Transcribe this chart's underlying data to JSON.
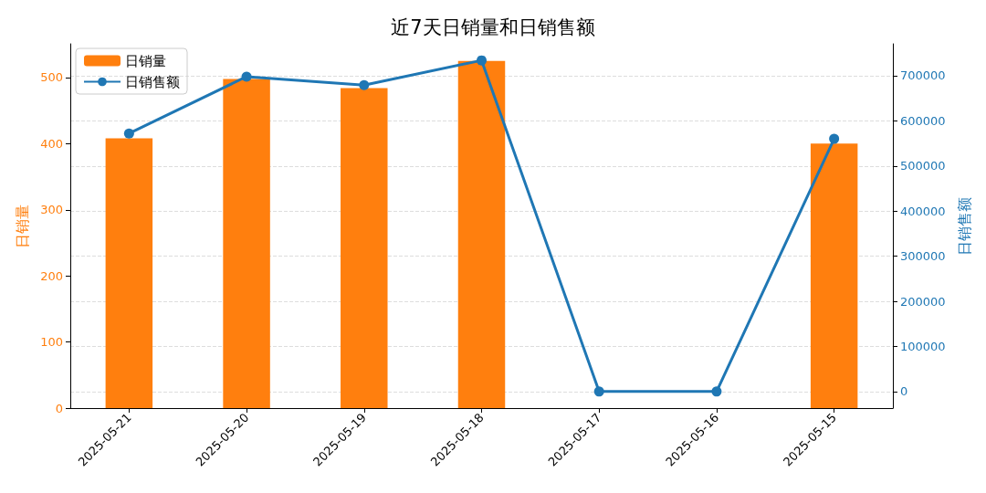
{
  "chart_data": {
    "type": "bar",
    "title": "近7天日销量和日销售额",
    "ylabel": "日销量",
    "y2label": "日销售额",
    "categories": [
      "2025-05-21",
      "2025-05-20",
      "2025-05-19",
      "2025-05-18",
      "2025-05-17",
      "2025-05-16",
      "2025-05-15"
    ],
    "series": [
      {
        "name": "日销量",
        "color": "#ff7f0e",
        "values": [
          408,
          498,
          484,
          525,
          0,
          0,
          400
        ]
      },
      {
        "name": "日销售额",
        "type": "line",
        "axis": "y2",
        "color": "#1f77b4",
        "marker": "circle",
        "values": [
          572000,
          698000,
          679000,
          734000,
          0,
          0,
          560000
        ]
      }
    ],
    "ylim": [
      0,
      551
    ],
    "yticks": [
      0,
      100,
      200,
      300,
      400,
      500
    ],
    "y2lim": [
      -36700,
      770700
    ],
    "y2ticks": [
      0,
      100000,
      200000,
      300000,
      400000,
      500000,
      600000,
      700000
    ],
    "grid": "y",
    "legend": "top left"
  }
}
